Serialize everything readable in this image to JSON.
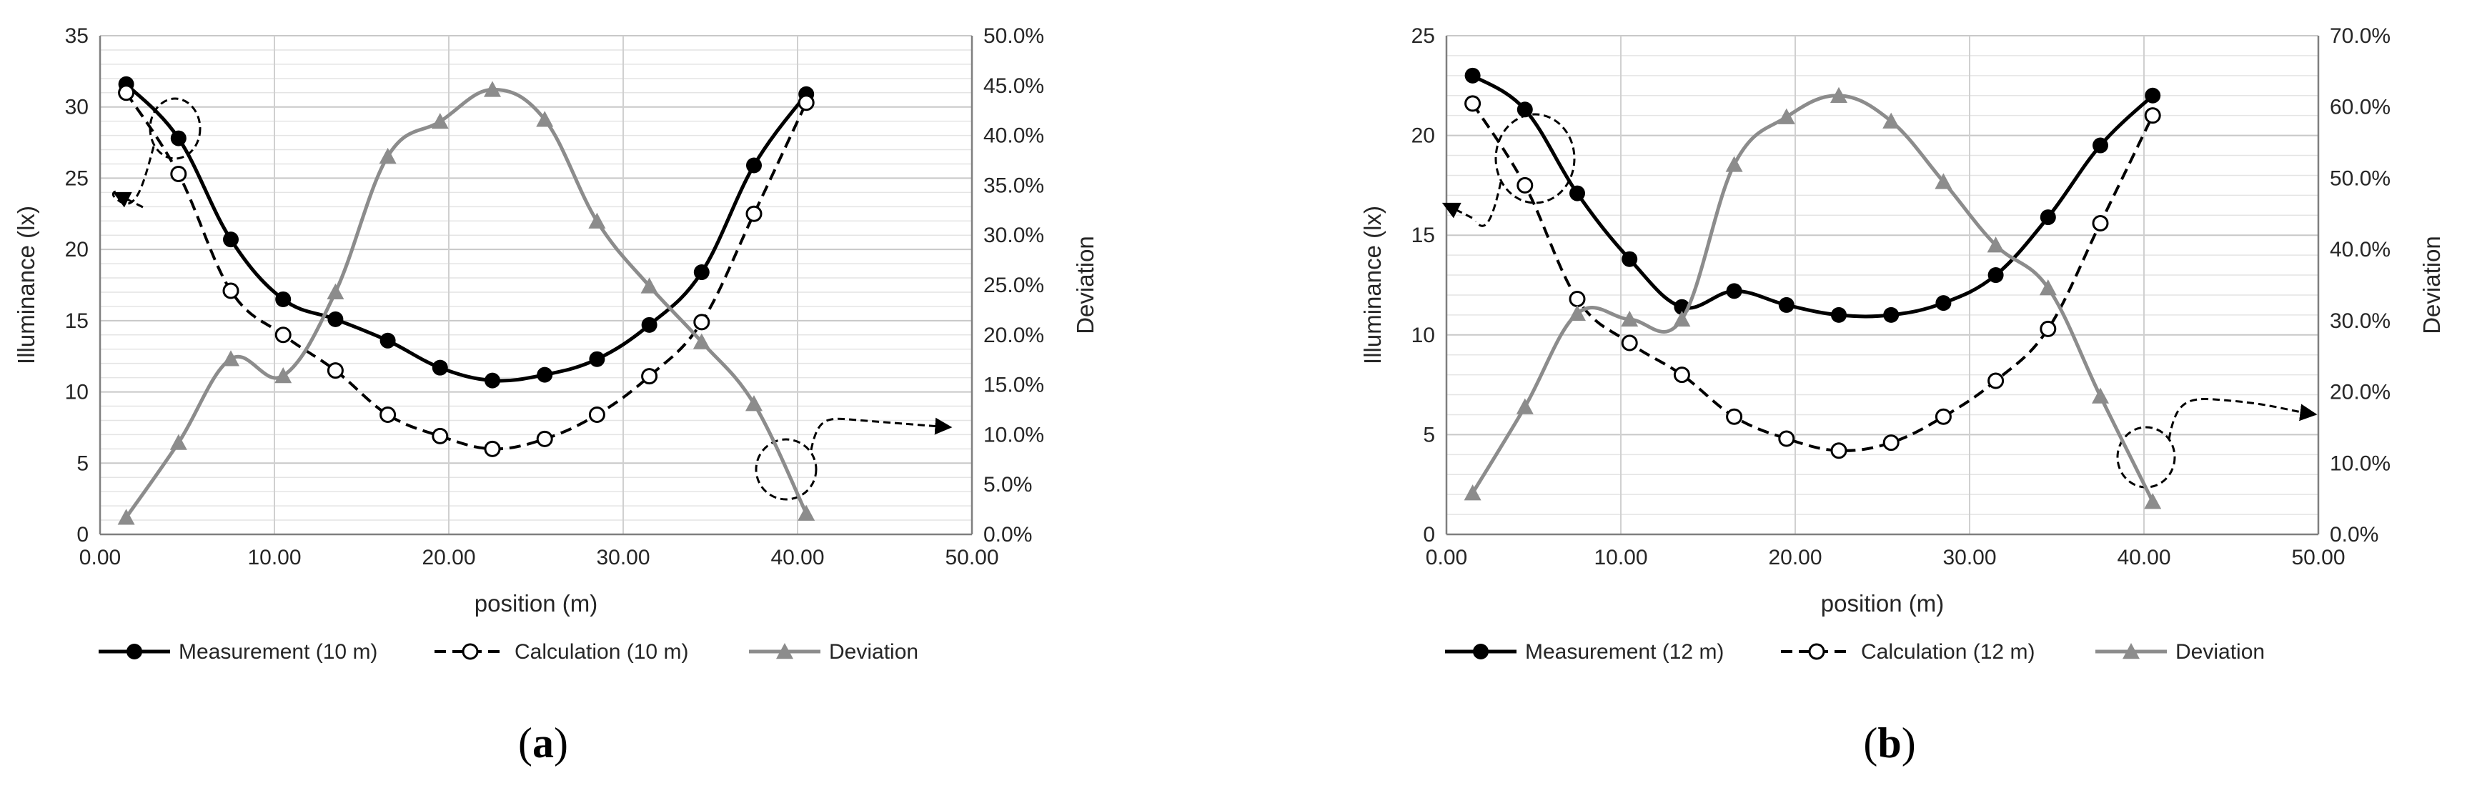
{
  "chart_data": [
    {
      "type": "line",
      "panel_label": "a",
      "panel_label_open": "(",
      "panel_label_close": ")",
      "title": "",
      "xlabel": "position (m)",
      "ylabel": "Illuminance (lx)",
      "y2label": "Deviation",
      "xlim": [
        0,
        50
      ],
      "ylim": [
        0,
        35
      ],
      "y2lim": [
        0,
        0.5
      ],
      "xticks": [
        "0.00",
        "10.00",
        "20.00",
        "30.00",
        "40.00",
        "50.00"
      ],
      "yticks": [
        "0",
        "5",
        "10",
        "15",
        "20",
        "25",
        "30",
        "35"
      ],
      "y2ticks": [
        "0.0%",
        "5.0%",
        "10.0%",
        "15.0%",
        "20.0%",
        "25.0%",
        "30.0%",
        "35.0%",
        "40.0%",
        "45.0%",
        "50.0%"
      ],
      "x": [
        1.5,
        4.5,
        7.5,
        10.5,
        13.5,
        16.5,
        19.5,
        22.5,
        25.5,
        28.5,
        31.5,
        34.5,
        37.5,
        40.5
      ],
      "series": [
        {
          "name": "Measurement (10 m)",
          "axis": "left",
          "style": "solid-black-filled-circle",
          "values": [
            31.6,
            27.8,
            20.7,
            16.5,
            15.1,
            13.6,
            11.7,
            10.8,
            11.2,
            12.3,
            14.7,
            18.4,
            25.9,
            30.9
          ]
        },
        {
          "name": "Calculation (10 m)",
          "axis": "left",
          "style": "dashed-black-open-circle",
          "values": [
            31.0,
            25.3,
            17.1,
            14.0,
            11.5,
            8.4,
            6.9,
            6.0,
            6.7,
            8.4,
            11.1,
            14.9,
            22.5,
            30.3
          ]
        },
        {
          "name": "Deviation",
          "axis": "right",
          "style": "solid-gray-triangle",
          "values": [
            0.017,
            0.092,
            0.176,
            0.159,
            0.243,
            0.379,
            0.414,
            0.446,
            0.416,
            0.314,
            0.249,
            0.193,
            0.131,
            0.021
          ]
        }
      ],
      "legend_position": "bottom"
    },
    {
      "type": "line",
      "panel_label": "b",
      "panel_label_open": "(",
      "panel_label_close": ")",
      "title": "",
      "xlabel": "position (m)",
      "ylabel": "Illuminance (lx)",
      "y2label": "Deviation",
      "xlim": [
        0,
        50
      ],
      "ylim": [
        0,
        25
      ],
      "y2lim": [
        0,
        0.7
      ],
      "xticks": [
        "0.00",
        "10.00",
        "20.00",
        "30.00",
        "40.00",
        "50.00"
      ],
      "yticks": [
        "0",
        "5",
        "10",
        "15",
        "20",
        "25"
      ],
      "y2ticks": [
        "0.0%",
        "10.0%",
        "20.0%",
        "30.0%",
        "40.0%",
        "50.0%",
        "60.0%",
        "70.0%"
      ],
      "x": [
        1.5,
        4.5,
        7.5,
        10.5,
        13.5,
        16.5,
        19.5,
        22.5,
        25.5,
        28.5,
        31.5,
        34.5,
        37.5,
        40.5
      ],
      "series": [
        {
          "name": "Measurement (12 m)",
          "axis": "left",
          "style": "solid-black-filled-circle",
          "values": [
            23.0,
            21.3,
            17.1,
            13.8,
            11.4,
            12.2,
            11.5,
            11.0,
            11.0,
            11.6,
            13.0,
            15.9,
            19.5,
            22.0
          ]
        },
        {
          "name": "Calculation (12 m)",
          "axis": "left",
          "style": "dashed-black-open-circle",
          "values": [
            21.6,
            17.5,
            11.8,
            9.6,
            8.0,
            5.9,
            4.8,
            4.2,
            4.6,
            5.9,
            7.7,
            10.3,
            15.6,
            21.0
          ]
        },
        {
          "name": "Deviation",
          "axis": "right",
          "style": "solid-gray-triangle",
          "values": [
            0.058,
            0.179,
            0.31,
            0.302,
            0.302,
            0.519,
            0.586,
            0.616,
            0.58,
            0.495,
            0.406,
            0.346,
            0.194,
            0.046
          ]
        }
      ],
      "legend_position": "bottom"
    }
  ]
}
